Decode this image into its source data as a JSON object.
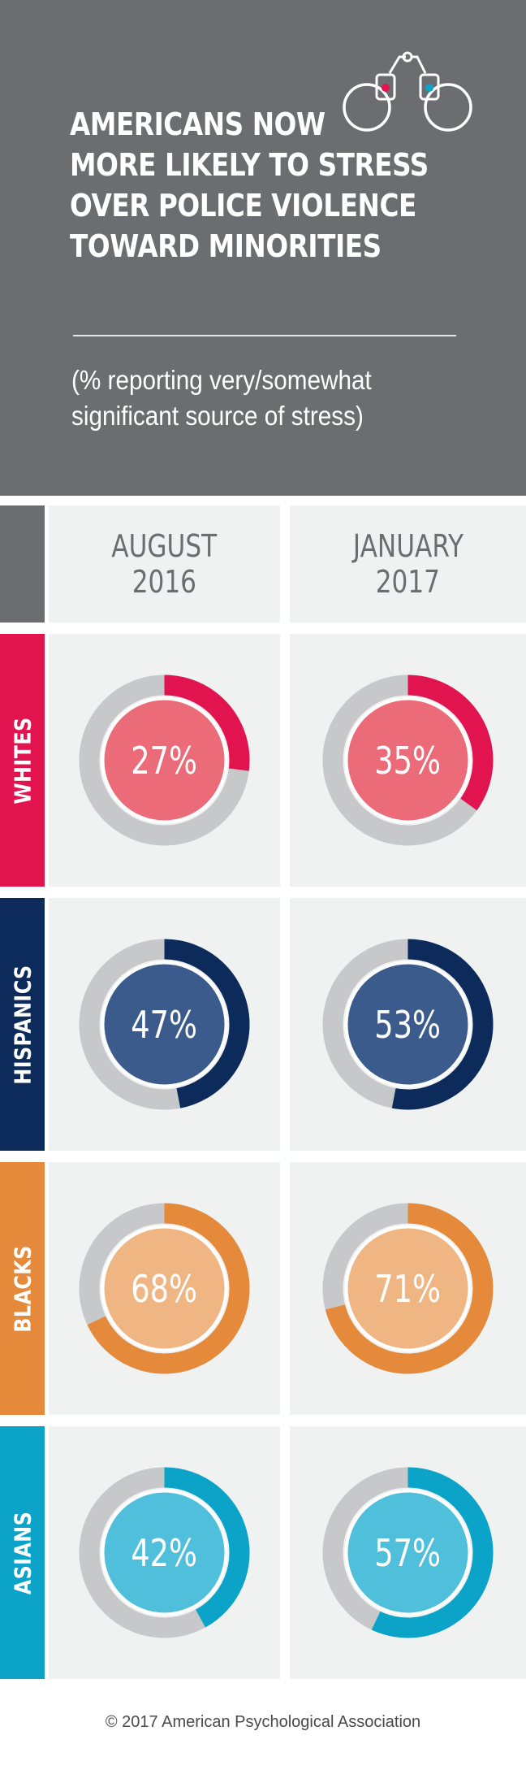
{
  "header": {
    "title_lines": [
      "AMERICANS NOW",
      "MORE LIKELY TO STRESS",
      "OVER POLICE VIOLENCE",
      "TOWARD MINORITIES"
    ],
    "subtitle_lines": [
      "(% reporting very/somewhat",
      "significant source of stress)"
    ],
    "icon": "handcuffs-icon"
  },
  "colors": {
    "header_bg": "#6c6d70",
    "cell_bg": "#f0f1f1",
    "ring_track": "#c7c8ca"
  },
  "chart_data": {
    "type": "donut",
    "title": "AMERICANS NOW MORE LIKELY TO STRESS OVER POLICE VIOLENCE TOWARD MINORITIES",
    "subtitle": "(% reporting very/somewhat significant source of stress)",
    "columns": [
      {
        "line1": "AUGUST",
        "line2": "2016"
      },
      {
        "line1": "JANUARY",
        "line2": "2017"
      }
    ],
    "rows": [
      {
        "name": "WHITES",
        "values": [
          27,
          35
        ],
        "color": "#e2144f",
        "inner": "#ec6b78"
      },
      {
        "name": "HISPANICS",
        "values": [
          47,
          53
        ],
        "color": "#0c2b5a",
        "inner": "#3a5b8c"
      },
      {
        "name": "BLACKS",
        "values": [
          68,
          71
        ],
        "color": "#e58a3a",
        "inner": "#efb684"
      },
      {
        "name": "ASIANS",
        "values": [
          42,
          57
        ],
        "color": "#0ba3c7",
        "inner": "#4fbfdc"
      }
    ],
    "unit": "%"
  },
  "footer": {
    "copyright": "© 2017 American Psychological Association"
  }
}
